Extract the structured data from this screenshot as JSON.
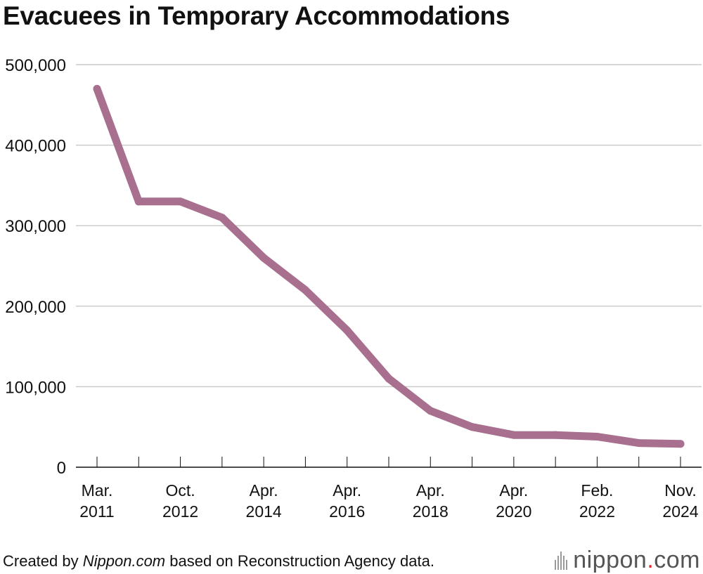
{
  "chart_data": {
    "type": "line",
    "title": "Evacuees in Temporary Accommodations",
    "x": [
      "Mar. 2011",
      "",
      "Oct. 2012",
      "",
      "Apr. 2014",
      "",
      "Apr. 2016",
      "",
      "Apr. 2018",
      "",
      "Apr. 2020",
      "",
      "Feb. 2022",
      "",
      "Nov. 2024"
    ],
    "x_tick_labels": [
      {
        "index": 0,
        "lines": [
          "Mar.",
          "2011"
        ]
      },
      {
        "index": 2,
        "lines": [
          "Oct.",
          "2012"
        ]
      },
      {
        "index": 4,
        "lines": [
          "Apr.",
          "2014"
        ]
      },
      {
        "index": 6,
        "lines": [
          "Apr.",
          "2016"
        ]
      },
      {
        "index": 8,
        "lines": [
          "Apr.",
          "2018"
        ]
      },
      {
        "index": 10,
        "lines": [
          "Apr.",
          "2020"
        ]
      },
      {
        "index": 12,
        "lines": [
          "Feb.",
          "2022"
        ]
      },
      {
        "index": 14,
        "lines": [
          "Nov.",
          "2024"
        ]
      }
    ],
    "series": [
      {
        "values": [
          470000,
          330000,
          330000,
          310000,
          260000,
          220000,
          170000,
          110000,
          70000,
          50000,
          40000,
          40000,
          38000,
          30000,
          29000
        ]
      }
    ],
    "y_ticks": [
      0,
      100000,
      200000,
      300000,
      400000,
      500000
    ],
    "y_tick_labels": [
      "0",
      "100,000",
      "200,000",
      "300,000",
      "400,000",
      "500,000"
    ],
    "ylim": [
      0,
      500000
    ],
    "grid": true,
    "xlabel": "",
    "ylabel": "",
    "line_color": "#a86f8e",
    "grid_color": "#cccccc"
  },
  "footer": {
    "prefix": "Created by ",
    "source": "Nippon.com",
    "suffix": " based on Reconstruction Agency data."
  },
  "brand": {
    "name": "nippon",
    "dot": ".",
    "tld": "com",
    "dot_color": "#e0262b"
  }
}
